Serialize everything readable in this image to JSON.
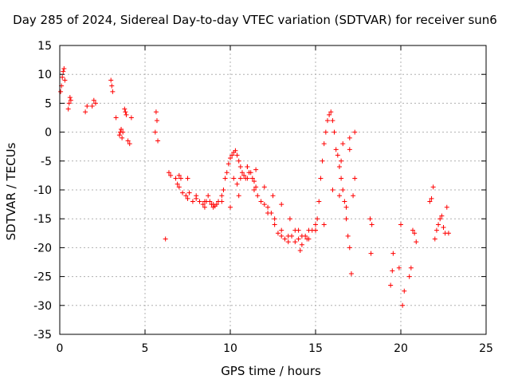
{
  "chart_data": {
    "type": "scatter",
    "title": "Day 285 of 2024, Sidereal Day-to-day VTEC variation (SDTVAR) for receiver sun6",
    "xlabel": "GPS time / hours",
    "ylabel": "SDTVAR / TECUs",
    "xlim": [
      0,
      25
    ],
    "ylim": [
      -35,
      15
    ],
    "grid": true,
    "xticks": [
      0,
      5,
      10,
      15,
      20,
      25
    ],
    "yticks": [
      15,
      10,
      5,
      0,
      -5,
      -10,
      -15,
      -20,
      -25,
      -30,
      -35
    ],
    "marker": "+",
    "color": "#ff0000",
    "series": [
      {
        "name": "SDTVAR",
        "x": [
          0.05,
          0.1,
          0.15,
          0.2,
          0.25,
          0.3,
          0.5,
          0.55,
          0.6,
          0.65,
          1.5,
          1.6,
          1.9,
          2.0,
          2.1,
          3.0,
          3.05,
          3.1,
          3.3,
          3.5,
          3.55,
          3.6,
          3.65,
          3.7,
          3.8,
          3.85,
          3.9,
          4.0,
          4.1,
          4.2,
          5.6,
          5.65,
          5.7,
          5.75,
          6.4,
          6.5,
          6.8,
          6.9,
          7.0,
          7.1,
          7.2,
          7.4,
          7.5,
          7.6,
          7.8,
          8.0,
          8.2,
          8.4,
          8.5,
          8.6,
          8.7,
          8.8,
          8.9,
          9.0,
          9.1,
          9.2,
          9.3,
          9.5,
          9.6,
          9.7,
          9.8,
          9.9,
          10.0,
          10.1,
          10.2,
          10.3,
          10.4,
          10.5,
          10.6,
          10.7,
          10.8,
          10.9,
          11.0,
          11.1,
          11.2,
          11.3,
          11.4,
          11.5,
          11.6,
          11.8,
          12.0,
          12.2,
          12.4,
          12.6,
          12.8,
          13.0,
          13.2,
          13.4,
          13.6,
          13.8,
          14.0,
          14.1,
          14.2,
          14.4,
          14.6,
          14.8,
          15.0,
          15.1,
          15.2,
          15.3,
          15.4,
          15.5,
          15.6,
          15.7,
          15.8,
          15.9,
          16.0,
          16.1,
          16.2,
          16.3,
          16.4,
          16.5,
          16.6,
          16.7,
          16.8,
          16.9,
          17.0,
          17.1,
          17.2,
          17.3,
          18.2,
          18.3,
          18.25,
          19.4,
          19.5,
          19.55,
          19.9,
          20.0,
          20.1,
          20.2,
          20.5,
          20.6,
          20.7,
          20.8,
          20.9,
          21.7,
          21.8,
          21.9,
          22.0,
          22.1,
          22.2,
          22.3,
          22.4,
          22.5,
          22.6,
          22.7,
          22.8,
          6.2,
          7.0,
          7.5,
          8.0,
          8.5,
          9.0,
          9.5,
          10.0,
          10.5,
          11.0,
          11.5,
          12.0,
          12.5,
          13.0,
          13.5,
          14.0,
          14.5,
          15.0,
          15.5,
          16.0,
          16.5,
          17.0,
          16.4,
          16.6,
          17.3,
          16.8,
          17.0,
          10.2,
          10.4,
          10.6,
          11.0,
          11.4,
          11.8,
          12.2,
          12.6,
          13.0,
          13.4,
          13.8,
          14.2,
          14.6,
          15.0
        ],
        "y": [
          7,
          8,
          9.5,
          10.5,
          11,
          9,
          4,
          5,
          6,
          5.5,
          3.5,
          4.5,
          4.5,
          5.5,
          5,
          9,
          8,
          7,
          2.5,
          -0.5,
          0,
          0.5,
          -1,
          0,
          4,
          3.5,
          3,
          -1.5,
          -2,
          2.5,
          0,
          3.5,
          2,
          -1.5,
          -7,
          -7.5,
          -8,
          -9,
          -9.5,
          -8,
          -10.5,
          -11,
          -11.5,
          -10.5,
          -12,
          -11.5,
          -12,
          -12.5,
          -13,
          -12,
          -11,
          -12,
          -12.5,
          -13,
          -12.8,
          -12.5,
          -12,
          -11,
          -10,
          -8,
          -7,
          -5.5,
          -4.5,
          -4,
          -3.5,
          -3.2,
          -4,
          -5,
          -6,
          -7,
          -7.5,
          -8,
          -6,
          -7,
          -7,
          -8,
          -8.5,
          -9.5,
          -11,
          -12,
          -12.5,
          -13,
          -14,
          -16,
          -17.5,
          -18,
          -18.5,
          -19,
          -18,
          -17,
          -18.5,
          -20.5,
          -19.5,
          -18,
          -18.5,
          -17,
          -17,
          -15,
          -12,
          -8,
          -5,
          -2,
          0,
          2,
          3,
          3.5,
          2,
          0,
          -3,
          -4,
          -6,
          -8,
          -10,
          -12,
          -15,
          -18,
          -20,
          -24.5,
          -11,
          -8,
          -15,
          -16,
          -21,
          -26.5,
          -24,
          -21,
          -23.5,
          -16,
          -30,
          -27.5,
          -25,
          -23.5,
          -17,
          -17.5,
          -19,
          -12,
          -11.5,
          -9.5,
          -18.5,
          -17,
          -16,
          -15,
          -14.5,
          -16.5,
          -17.5,
          -13,
          -17.5,
          -18.5,
          -7.5,
          -8,
          -11,
          -12,
          -12.5,
          -12,
          -13,
          -11,
          -8,
          -6.5,
          -9.5,
          -11,
          -12.5,
          -15,
          -17,
          -18.5,
          -17,
          -16,
          -10,
          -5,
          -1,
          -11,
          -2,
          0,
          -13,
          -3,
          -8,
          -9,
          -8,
          -6,
          -10,
          -12,
          -14,
          -15,
          -17,
          -18,
          -19,
          -18,
          -17,
          -16
        ]
      }
    ]
  }
}
